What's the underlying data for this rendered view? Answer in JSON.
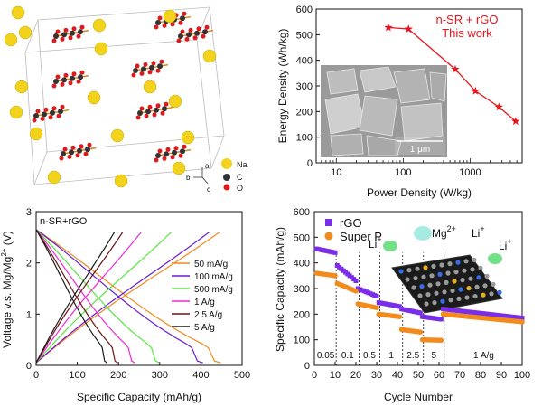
{
  "panels": {
    "crystal": {
      "legend": [
        {
          "label": "Na",
          "color": "#f2d21a"
        },
        {
          "label": "C",
          "color": "#333333"
        },
        {
          "label": "O",
          "color": "#e01a1a"
        }
      ],
      "axes": {
        "a": "a",
        "b": "b",
        "c": "c"
      }
    },
    "ragone": {
      "inset_scale": "1 μm"
    },
    "charge": {
      "corner_label": "n-SR+rGO"
    },
    "cycling": {
      "inset_ions": [
        "Mg",
        "Li",
        "Li"
      ],
      "inset_ion_sup": [
        "2+",
        "+",
        "+"
      ]
    }
  },
  "chart_data": [
    {
      "id": "ragone",
      "type": "scatter",
      "xlabel": "Power Density (W/kg)",
      "ylabel": "Energy Density (Wh/kg)",
      "xscale": "log",
      "xlim": [
        5,
        6000
      ],
      "ylim": [
        0,
        600
      ],
      "xticks": [
        10,
        100,
        1000
      ],
      "yticks": [
        0,
        100,
        200,
        300,
        400,
        500,
        600
      ],
      "annotation": [
        "n-SR + rGO",
        "This work"
      ],
      "series": [
        {
          "name": "",
          "color": "#e8141b",
          "x": [
            60,
            120,
            600,
            1200,
            2700,
            4800
          ],
          "y": [
            528,
            522,
            365,
            280,
            218,
            162
          ]
        }
      ]
    },
    {
      "id": "charge",
      "type": "line",
      "xlabel": "Specific Capacity (mAh/g)",
      "ylabel": "Voltage v.s. Mg/Mg",
      "ylabel_sup": "2+",
      "ylabel_suffix": " (V)",
      "xlim": [
        0,
        500
      ],
      "ylim": [
        0,
        3
      ],
      "xticks": [
        0,
        100,
        200,
        300,
        400,
        500
      ],
      "yticks": [
        0,
        1,
        2,
        3
      ],
      "series": [
        {
          "name": "50 mA/g",
          "color": "#f28a1d",
          "charge_end": 445,
          "discharge_end": 448
        },
        {
          "name": "100 mA/g",
          "color": "#6a1cd2",
          "charge_end": 420,
          "discharge_end": 405
        },
        {
          "name": "500 mA/g",
          "color": "#55e83a",
          "charge_end": 328,
          "discharge_end": 300
        },
        {
          "name": "1 A/g",
          "color": "#f02ad2",
          "charge_end": 255,
          "discharge_end": 240
        },
        {
          "name": "2.5 A/g",
          "color": "#6b1414",
          "charge_end": 210,
          "discharge_end": 198
        },
        {
          "name": "5 A/g",
          "color": "#1a1a1a",
          "charge_end": 190,
          "discharge_end": 172
        }
      ]
    },
    {
      "id": "cycling",
      "type": "scatter",
      "xlabel": "Cycle Number",
      "ylabel": "Specific Capacity (mAh/g)",
      "xlim": [
        0,
        100
      ],
      "ylim": [
        0,
        600
      ],
      "xticks": [
        0,
        10,
        20,
        30,
        40,
        50,
        60,
        70,
        80,
        90,
        100
      ],
      "yticks": [
        0,
        100,
        200,
        300,
        400,
        500,
        600
      ],
      "rate_labels": [
        "0.05",
        "0.1",
        "0.5",
        "1",
        "2.5",
        "5",
        "1 A/g"
      ],
      "rate_dividers": [
        10,
        21,
        31,
        42,
        52,
        62
      ],
      "series": [
        {
          "name": "rGO",
          "color": "#7b2ee8",
          "marker": "square",
          "segments": [
            [
              1,
              10,
              455,
              440
            ],
            [
              11,
              20,
              390,
              330
            ],
            [
              21,
              30,
              300,
              270
            ],
            [
              31,
              41,
              245,
              230
            ],
            [
              42,
              51,
              220,
              205
            ],
            [
              52,
              61,
              190,
              180
            ],
            [
              62,
              100,
              220,
              185
            ]
          ]
        },
        {
          "name": "Super P",
          "color": "#f28a1d",
          "marker": "circle",
          "segments": [
            [
              1,
              10,
              360,
              350
            ],
            [
              11,
              20,
              320,
              290
            ],
            [
              21,
              30,
              240,
              225
            ],
            [
              31,
              41,
              200,
              190
            ],
            [
              42,
              51,
              140,
              130
            ],
            [
              52,
              61,
              100,
              98
            ],
            [
              62,
              100,
              200,
              170
            ]
          ]
        }
      ]
    }
  ]
}
